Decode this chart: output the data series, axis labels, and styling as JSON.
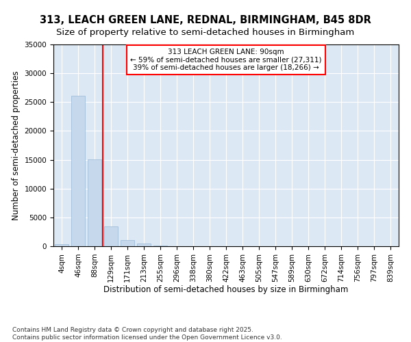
{
  "title_line1": "313, LEACH GREEN LANE, REDNAL, BIRMINGHAM, B45 8DR",
  "title_line2": "Size of property relative to semi-detached houses in Birmingham",
  "xlabel": "Distribution of semi-detached houses by size in Birmingham",
  "ylabel": "Number of semi-detached properties",
  "categories": [
    "4sqm",
    "46sqm",
    "88sqm",
    "129sqm",
    "171sqm",
    "213sqm",
    "255sqm",
    "296sqm",
    "338sqm",
    "380sqm",
    "422sqm",
    "463sqm",
    "505sqm",
    "547sqm",
    "589sqm",
    "630sqm",
    "672sqm",
    "714sqm",
    "756sqm",
    "797sqm",
    "839sqm"
  ],
  "values": [
    400,
    26100,
    15100,
    3400,
    1100,
    500,
    150,
    50,
    10,
    5,
    2,
    1,
    0,
    0,
    0,
    0,
    0,
    0,
    0,
    0,
    0
  ],
  "bar_color": "#c5d8ec",
  "bar_edge_color": "#9ab8d4",
  "vline_x_index": 2,
  "vline_color": "red",
  "annotation_text": "313 LEACH GREEN LANE: 90sqm\n← 59% of semi-detached houses are smaller (27,311)\n39% of semi-detached houses are larger (18,266) →",
  "annotation_box_color": "white",
  "annotation_box_edge": "red",
  "ylim": [
    0,
    35000
  ],
  "yticks": [
    0,
    5000,
    10000,
    15000,
    20000,
    25000,
    30000,
    35000
  ],
  "background_color": "#dde8f5",
  "grid_color": "white",
  "footer_text": "Contains HM Land Registry data © Crown copyright and database right 2025.\nContains public sector information licensed under the Open Government Licence v3.0.",
  "title_fontsize": 10.5,
  "subtitle_fontsize": 9.5,
  "axis_label_fontsize": 8.5,
  "tick_fontsize": 7.5,
  "annotation_fontsize": 7.5,
  "footer_fontsize": 6.5
}
